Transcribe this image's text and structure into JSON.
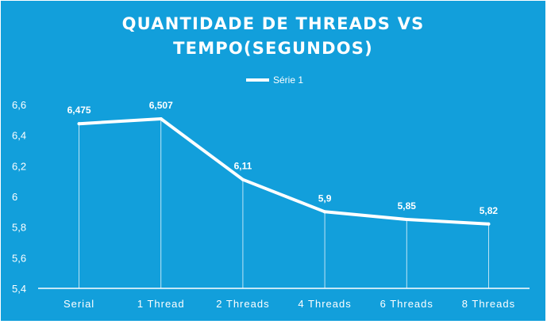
{
  "chart_data": {
    "type": "line",
    "title_lines": [
      "QUANTIDADE DE THREADS VS",
      "TEMPO(SEGUNDOS)"
    ],
    "categories": [
      "Serial",
      "1 Thread",
      "2 Threads",
      "4 Threads",
      "6 Threads",
      "8 Threads"
    ],
    "series": [
      {
        "name": "Série 1",
        "values": [
          6.475,
          6.507,
          6.11,
          5.9,
          5.85,
          5.82
        ],
        "labels": [
          "6,475",
          "6,507",
          "6,11",
          "5,9",
          "5,85",
          "5,82"
        ]
      }
    ],
    "ylim": [
      5.4,
      6.6
    ],
    "y_ticks": [
      {
        "value": 5.4,
        "label": "5,4"
      },
      {
        "value": 5.6,
        "label": "5,6"
      },
      {
        "value": 5.8,
        "label": "5,8"
      },
      {
        "value": 6.0,
        "label": "6"
      },
      {
        "value": 6.2,
        "label": "6,2"
      },
      {
        "value": 6.4,
        "label": "6,4"
      },
      {
        "value": 6.6,
        "label": "6,6"
      }
    ],
    "grid": false,
    "drop_lines": true,
    "legend_position": "top",
    "colors": {
      "background": "#129fdb",
      "line": "#ffffff",
      "text": "#ffffff",
      "axis": "#ffffff"
    }
  }
}
